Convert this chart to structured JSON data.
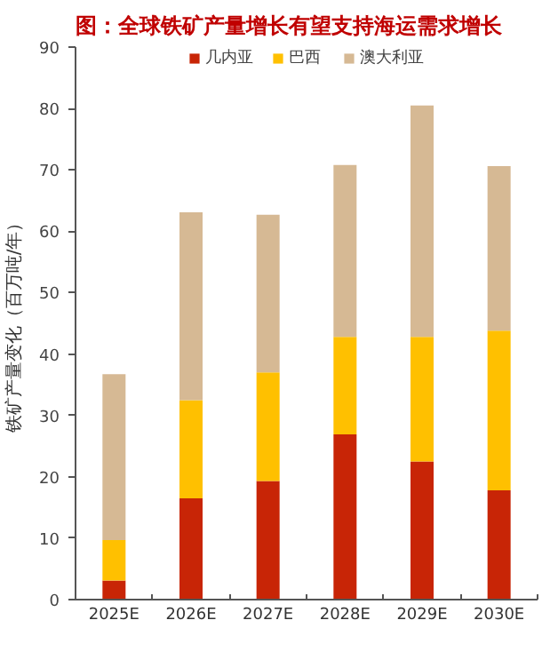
{
  "chart_data": {
    "type": "bar",
    "title": "图：全球铁矿产量增长有望支持海运需求增长",
    "ylabel": "铁矿产量变化（百万吨/年）",
    "categories": [
      "2025E",
      "2026E",
      "2027E",
      "2028E",
      "2029E",
      "2030E"
    ],
    "stacked": true,
    "series": [
      {
        "name": "几内亚",
        "color": "#c82506",
        "values": [
          3.1,
          16.5,
          19.3,
          26.9,
          22.5,
          17.8
        ]
      },
      {
        "name": "巴西",
        "color": "#ffc000",
        "values": [
          6.6,
          16.0,
          17.7,
          15.9,
          20.3,
          26.0
        ]
      },
      {
        "name": "澳大利亚",
        "color": "#d6b994",
        "values": [
          27.0,
          30.6,
          25.7,
          28.0,
          37.7,
          26.8
        ]
      }
    ],
    "ylim": [
      0,
      90
    ],
    "yticks": [
      0,
      10,
      20,
      30,
      40,
      50,
      60,
      70,
      80,
      90
    ],
    "grid": false,
    "legend": "top"
  }
}
